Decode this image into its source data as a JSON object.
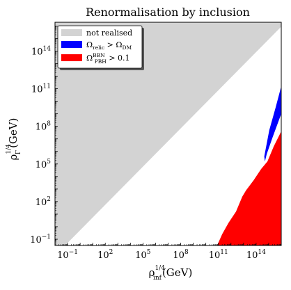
{
  "chart_data": {
    "type": "area",
    "title": "Renormalisation by inclusion",
    "xlabel": {
      "base": "ρ",
      "sup": "1/4",
      "sub": "inf",
      "unit": "(GeV)"
    },
    "ylabel": {
      "base": "ρ",
      "sup": "1/4",
      "sub": "Γ",
      "unit": "(GeV)"
    },
    "xscale": "log",
    "yscale": "log",
    "xlim_log10": [
      -2.0,
      16.0
    ],
    "ylim_log10": [
      -1.5,
      16.3
    ],
    "xticks": [
      {
        "exp": -1,
        "label": "10",
        "sup": "−1"
      },
      {
        "exp": 2,
        "label": "10",
        "sup": "2"
      },
      {
        "exp": 5,
        "label": "10",
        "sup": "5"
      },
      {
        "exp": 8,
        "label": "10",
        "sup": "8"
      },
      {
        "exp": 11,
        "label": "10",
        "sup": "11"
      },
      {
        "exp": 14,
        "label": "10",
        "sup": "14"
      }
    ],
    "yticks": [
      {
        "exp": -1,
        "label": "10",
        "sup": "−1"
      },
      {
        "exp": 2,
        "label": "10",
        "sup": "2"
      },
      {
        "exp": 5,
        "label": "10",
        "sup": "5"
      },
      {
        "exp": 8,
        "label": "10",
        "sup": "8"
      },
      {
        "exp": 11,
        "label": "10",
        "sup": "11"
      },
      {
        "exp": 14,
        "label": "10",
        "sup": "14"
      }
    ],
    "legend_position": "top-left",
    "series": [
      {
        "name": "not realised",
        "color": "#d3d3d3",
        "region_log10": [
          [
            -2.0,
            -1.5
          ],
          [
            -2.0,
            16.3
          ],
          [
            16.0,
            16.3
          ],
          [
            16.0,
            15.95
          ],
          [
            -1.2,
            -1.5
          ]
        ]
      },
      {
        "name": "Ω_relic > Ω_DM",
        "label_parts": {
          "base1": "Ω",
          "sub1": "relic",
          "op": " > ",
          "base2": "Ω",
          "sub2": "DM"
        },
        "color": "#0000ff",
        "region_log10": [
          [
            14.7,
            5.2
          ],
          [
            14.85,
            5.8
          ],
          [
            15.3,
            7.1
          ],
          [
            16.0,
            9.0
          ],
          [
            16.0,
            11.2
          ],
          [
            15.55,
            9.5
          ],
          [
            15.05,
            7.7
          ],
          [
            14.65,
            5.6
          ]
        ]
      },
      {
        "name": "Ω_PBH^BBN > 0.1",
        "label_parts": {
          "base": "Ω",
          "sup": "BBN",
          "sub": "PBH",
          "op": " > 0.1"
        },
        "color": "#ff0000",
        "region_log10": [
          [
            10.9,
            -1.5
          ],
          [
            11.3,
            -0.6
          ],
          [
            11.8,
            0.3
          ],
          [
            12.4,
            1.2
          ],
          [
            12.9,
            2.4
          ],
          [
            13.2,
            2.9
          ],
          [
            13.8,
            3.7
          ],
          [
            14.4,
            4.6
          ],
          [
            14.9,
            5.2
          ],
          [
            15.4,
            6.4
          ],
          [
            16.0,
            7.6
          ],
          [
            16.0,
            -1.5
          ]
        ]
      }
    ]
  }
}
